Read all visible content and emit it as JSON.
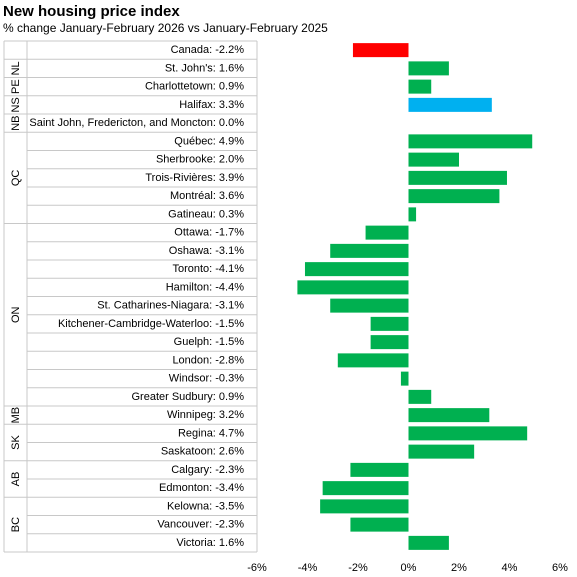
{
  "chart_data": {
    "type": "bar",
    "orientation": "horizontal",
    "title": "New housing price index",
    "subtitle": "% change January-February  2026 vs January-February  2025",
    "xlim": [
      -6,
      6
    ],
    "x_ticks": [
      -6,
      -4,
      -2,
      0,
      2,
      4,
      6
    ],
    "x_tick_labels": [
      "-6%",
      "-4%",
      "-2%",
      "0%",
      "2%",
      "4%",
      "6%"
    ],
    "grid": false,
    "legend": "none",
    "colors": {
      "default": "#00b050",
      "national": "#ff0000",
      "highlight": "#00b0f0",
      "separator": "#c8c8c8"
    },
    "groups": [
      {
        "label": "",
        "start": 0,
        "end": 0
      },
      {
        "label": "NL",
        "start": 1,
        "end": 1
      },
      {
        "label": "PE",
        "start": 2,
        "end": 2
      },
      {
        "label": "NS",
        "start": 3,
        "end": 3
      },
      {
        "label": "NB",
        "start": 4,
        "end": 4
      },
      {
        "label": "QC",
        "start": 5,
        "end": 9
      },
      {
        "label": "ON",
        "start": 10,
        "end": 19
      },
      {
        "label": "MB",
        "start": 20,
        "end": 20
      },
      {
        "label": "SK",
        "start": 21,
        "end": 22
      },
      {
        "label": "AB",
        "start": 23,
        "end": 24
      },
      {
        "label": "BC",
        "start": 25,
        "end": 27
      }
    ],
    "categories": [
      "Canada: -2.2%",
      "St. John's: 1.6%",
      "Charlottetown: 0.9%",
      "Halifax: 3.3%",
      "Saint John, Fredericton, and Moncton: 0.0%",
      "Québec: 4.9%",
      "Sherbrooke: 2.0%",
      "Trois-Rivières: 3.9%",
      "Montréal: 3.6%",
      "Gatineau: 0.3%",
      "Ottawa: -1.7%",
      "Oshawa: -3.1%",
      "Toronto: -4.1%",
      "Hamilton: -4.4%",
      "St. Catharines-Niagara: -3.1%",
      "Kitchener-Cambridge-Waterloo: -1.5%",
      "Guelph: -1.5%",
      "London: -2.8%",
      "Windsor: -0.3%",
      "Greater Sudbury: 0.9%",
      "Winnipeg: 3.2%",
      "Regina: 4.7%",
      "Saskatoon: 2.6%",
      "Calgary: -2.3%",
      "Edmonton: -3.4%",
      "Kelowna: -3.5%",
      "Vancouver: -2.3%",
      "Victoria: 1.6%"
    ],
    "values": [
      -2.2,
      1.6,
      0.9,
      3.3,
      0.0,
      4.9,
      2.0,
      3.9,
      3.6,
      0.3,
      -1.7,
      -3.1,
      -4.1,
      -4.4,
      -3.1,
      -1.5,
      -1.5,
      -2.8,
      -0.3,
      0.9,
      3.2,
      4.7,
      2.6,
      -2.3,
      -3.4,
      -3.5,
      -2.3,
      1.6
    ],
    "bar_colors": [
      "national",
      "default",
      "default",
      "highlight",
      "default",
      "default",
      "default",
      "default",
      "default",
      "default",
      "default",
      "default",
      "default",
      "default",
      "default",
      "default",
      "default",
      "default",
      "default",
      "default",
      "default",
      "default",
      "default",
      "default",
      "default",
      "default",
      "default",
      "default"
    ]
  }
}
